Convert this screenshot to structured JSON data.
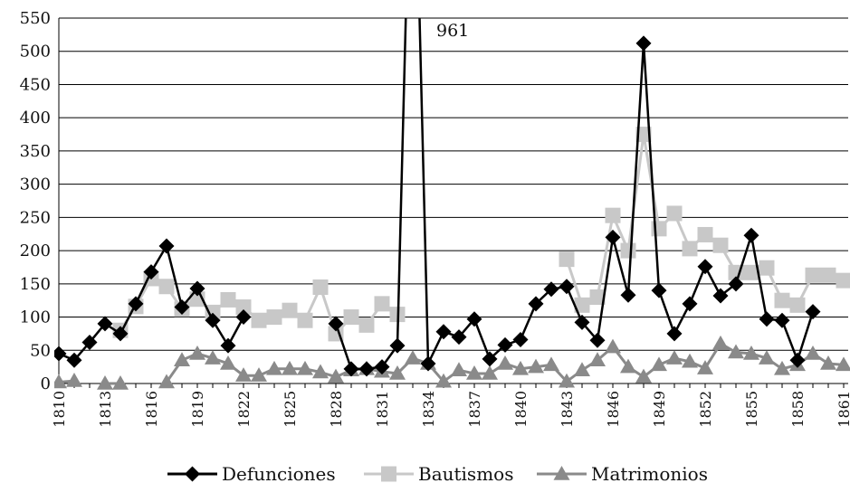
{
  "chart_data": {
    "type": "line",
    "title": "",
    "xlabel": "",
    "ylabel": "",
    "ylim": [
      0,
      550
    ],
    "yticks": [
      0,
      50,
      100,
      150,
      200,
      250,
      300,
      350,
      400,
      450,
      500,
      550
    ],
    "xlim": [
      1810,
      1861
    ],
    "xticks": [
      "1810",
      "1813",
      "1816",
      "1819",
      "1822",
      "1825",
      "1828",
      "1831",
      "1834",
      "1837",
      "1840",
      "1843",
      "1846",
      "1849",
      "1852",
      "1855",
      "1858",
      "1861"
    ],
    "grid": "horizontal",
    "legend_position": "bottom",
    "annotations": [
      {
        "text": "961",
        "x": 1833,
        "y": 961
      }
    ],
    "series": [
      {
        "name": "Defunciones",
        "color": "#000000",
        "marker": "diamond",
        "points": [
          [
            1810,
            45
          ],
          [
            1811,
            35
          ],
          [
            1812,
            62
          ],
          [
            1813,
            90
          ],
          [
            1814,
            75
          ],
          [
            1815,
            120
          ],
          [
            1816,
            168
          ],
          [
            1817,
            207
          ],
          [
            1818,
            115
          ],
          [
            1819,
            143
          ],
          [
            1820,
            95
          ],
          [
            1821,
            57
          ],
          [
            1822,
            100
          ],
          null,
          [
            1828,
            90
          ],
          [
            1829,
            22
          ],
          [
            1830,
            22
          ],
          [
            1831,
            25
          ],
          [
            1832,
            57
          ],
          [
            1833,
            961
          ],
          [
            1834,
            30
          ],
          [
            1835,
            78
          ],
          [
            1836,
            70
          ],
          [
            1837,
            97
          ],
          [
            1838,
            37
          ],
          [
            1839,
            58
          ],
          [
            1840,
            66
          ],
          [
            1841,
            120
          ],
          [
            1842,
            142
          ],
          [
            1843,
            146
          ],
          [
            1844,
            92
          ],
          [
            1845,
            65
          ],
          [
            1846,
            220
          ],
          [
            1847,
            133
          ],
          [
            1848,
            512
          ],
          [
            1849,
            140
          ],
          [
            1850,
            75
          ],
          [
            1851,
            120
          ],
          [
            1852,
            176
          ],
          [
            1853,
            132
          ],
          [
            1854,
            150
          ],
          [
            1855,
            223
          ],
          [
            1856,
            97
          ],
          [
            1857,
            95
          ],
          [
            1858,
            35
          ],
          [
            1859,
            108
          ]
        ]
      },
      {
        "name": "Bautismos",
        "color": "#c8c8c8",
        "marker": "square",
        "points": [
          [
            1814,
            80
          ],
          [
            1815,
            116
          ],
          [
            1816,
            158
          ],
          [
            1817,
            146
          ],
          [
            1818,
            112
          ],
          [
            1819,
            127
          ],
          [
            1820,
            107
          ],
          [
            1821,
            126
          ],
          [
            1822,
            115
          ],
          [
            1823,
            95
          ],
          [
            1824,
            100
          ],
          [
            1825,
            110
          ],
          [
            1826,
            95
          ],
          [
            1827,
            145
          ],
          [
            1828,
            75
          ],
          [
            1829,
            100
          ],
          [
            1830,
            88
          ],
          [
            1831,
            120
          ],
          [
            1832,
            104
          ],
          null,
          [
            1843,
            187
          ],
          [
            1844,
            118
          ],
          [
            1845,
            130
          ],
          [
            1846,
            253
          ],
          [
            1847,
            200
          ],
          [
            1848,
            375
          ],
          [
            1849,
            233
          ],
          [
            1850,
            256
          ],
          [
            1851,
            203
          ],
          [
            1852,
            224
          ],
          [
            1853,
            208
          ],
          [
            1854,
            167
          ],
          [
            1855,
            167
          ],
          [
            1856,
            174
          ],
          [
            1857,
            125
          ],
          [
            1858,
            118
          ],
          [
            1859,
            163
          ],
          [
            1860,
            163
          ],
          [
            1861,
            155
          ]
        ]
      },
      {
        "name": "Matrimonios",
        "color": "#8a8a8a",
        "marker": "triangle",
        "points": [
          [
            1810,
            2
          ],
          [
            1811,
            4
          ],
          null,
          [
            1813,
            0
          ],
          [
            1814,
            0
          ],
          null,
          [
            1817,
            2
          ],
          [
            1818,
            35
          ],
          [
            1819,
            45
          ],
          [
            1820,
            38
          ],
          [
            1821,
            30
          ],
          [
            1822,
            12
          ],
          [
            1823,
            12
          ],
          [
            1824,
            22
          ],
          [
            1825,
            22
          ],
          [
            1826,
            22
          ],
          [
            1827,
            17
          ],
          [
            1828,
            10
          ],
          [
            1829,
            20
          ],
          [
            1830,
            22
          ],
          [
            1831,
            18
          ],
          [
            1832,
            15
          ],
          [
            1833,
            38
          ],
          [
            1834,
            30
          ],
          [
            1835,
            3
          ],
          [
            1836,
            20
          ],
          [
            1837,
            15
          ],
          [
            1838,
            15
          ],
          [
            1839,
            30
          ],
          [
            1840,
            22
          ],
          [
            1841,
            25
          ],
          [
            1842,
            28
          ],
          [
            1843,
            3
          ],
          [
            1844,
            20
          ],
          [
            1845,
            35
          ],
          [
            1846,
            55
          ],
          [
            1847,
            25
          ],
          [
            1848,
            10
          ],
          [
            1849,
            28
          ],
          [
            1850,
            38
          ],
          [
            1851,
            33
          ],
          [
            1852,
            23
          ],
          [
            1853,
            60
          ],
          [
            1854,
            47
          ],
          [
            1855,
            45
          ],
          [
            1856,
            38
          ],
          [
            1857,
            22
          ],
          [
            1858,
            28
          ],
          [
            1859,
            45
          ],
          [
            1860,
            30
          ],
          [
            1861,
            28
          ]
        ]
      }
    ]
  }
}
